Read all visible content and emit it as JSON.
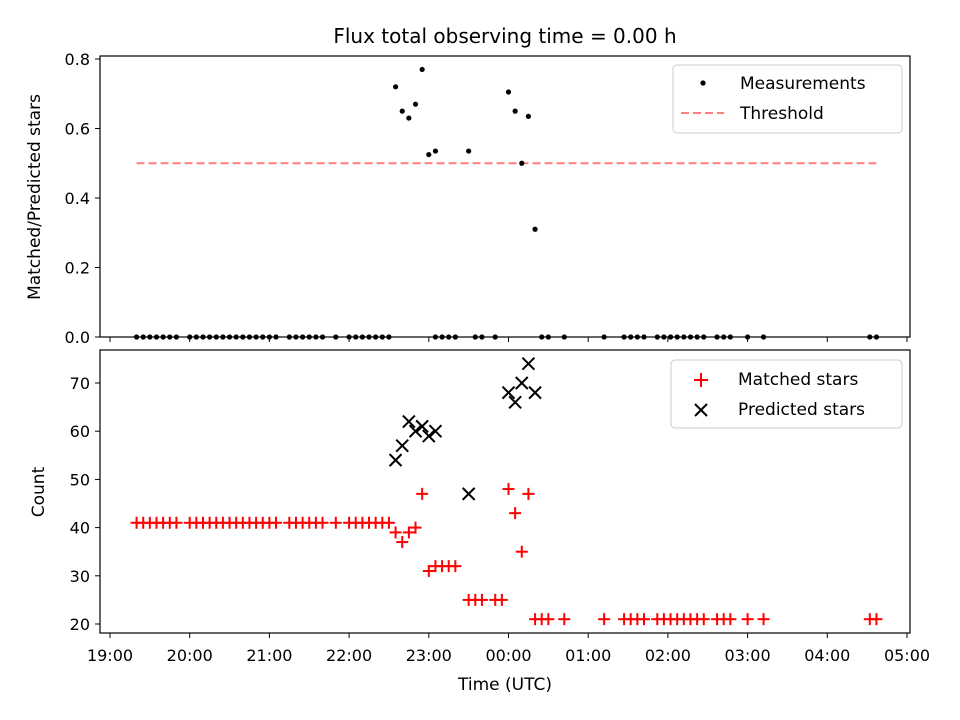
{
  "chart_data": [
    {
      "type": "scatter",
      "title": "Flux total observing time = 0.00 h",
      "ylabel": "Matched/Predicted stars",
      "xlim": [
        "19:00",
        "05:00"
      ],
      "ylim": [
        0,
        0.8
      ],
      "yticks": [
        "0.0",
        "0.2",
        "0.4",
        "0.6",
        "0.8"
      ],
      "legend_position": "upper-right",
      "threshold": {
        "name": "Threshold",
        "value": 0.5,
        "x_range": [
          "19:20",
          "04:37"
        ],
        "color": "#ff7f7f"
      },
      "series": [
        {
          "name": "Measurements",
          "marker": "dot",
          "color": "#000000",
          "points": [
            [
              "19:20",
              0
            ],
            [
              "19:25",
              0
            ],
            [
              "19:30",
              0
            ],
            [
              "19:35",
              0
            ],
            [
              "19:40",
              0
            ],
            [
              "19:45",
              0
            ],
            [
              "19:50",
              0
            ],
            [
              "20:00",
              0
            ],
            [
              "20:05",
              0
            ],
            [
              "20:10",
              0
            ],
            [
              "20:15",
              0
            ],
            [
              "20:20",
              0
            ],
            [
              "20:25",
              0
            ],
            [
              "20:30",
              0
            ],
            [
              "20:35",
              0
            ],
            [
              "20:40",
              0
            ],
            [
              "20:45",
              0
            ],
            [
              "20:50",
              0
            ],
            [
              "20:55",
              0
            ],
            [
              "21:00",
              0
            ],
            [
              "21:05",
              0
            ],
            [
              "21:15",
              0
            ],
            [
              "21:20",
              0
            ],
            [
              "21:25",
              0
            ],
            [
              "21:30",
              0
            ],
            [
              "21:35",
              0
            ],
            [
              "21:40",
              0
            ],
            [
              "21:50",
              0
            ],
            [
              "22:00",
              0
            ],
            [
              "22:05",
              0
            ],
            [
              "22:10",
              0
            ],
            [
              "22:15",
              0
            ],
            [
              "22:20",
              0
            ],
            [
              "22:25",
              0
            ],
            [
              "22:30",
              0
            ],
            [
              "22:35",
              0.72
            ],
            [
              "22:40",
              0.65
            ],
            [
              "22:45",
              0.63
            ],
            [
              "22:50",
              0.67
            ],
            [
              "22:55",
              0.77
            ],
            [
              "23:00",
              0.525
            ],
            [
              "23:05",
              0.535
            ],
            [
              "23:05",
              0
            ],
            [
              "23:10",
              0
            ],
            [
              "23:15",
              0
            ],
            [
              "23:20",
              0
            ],
            [
              "23:30",
              0.535
            ],
            [
              "23:35",
              0
            ],
            [
              "23:40",
              0
            ],
            [
              "23:50",
              0
            ],
            [
              "24:00",
              0.705
            ],
            [
              "24:05",
              0.65
            ],
            [
              "24:10",
              0.5
            ],
            [
              "24:15",
              0.635
            ],
            [
              "24:20",
              0.31
            ],
            [
              "24:25",
              0
            ],
            [
              "24:30",
              0
            ],
            [
              "24:42",
              0
            ],
            [
              "25:12",
              0
            ],
            [
              "25:27",
              0
            ],
            [
              "25:32",
              0
            ],
            [
              "25:37",
              0
            ],
            [
              "25:42",
              0
            ],
            [
              "25:52",
              0
            ],
            [
              "25:57",
              0
            ],
            [
              "26:02",
              0
            ],
            [
              "26:07",
              0
            ],
            [
              "26:12",
              0
            ],
            [
              "26:17",
              0
            ],
            [
              "26:22",
              0
            ],
            [
              "26:27",
              0
            ],
            [
              "26:37",
              0
            ],
            [
              "26:42",
              0
            ],
            [
              "26:47",
              0
            ],
            [
              "27:00",
              0
            ],
            [
              "27:12",
              0
            ],
            [
              "28:32",
              0
            ],
            [
              "28:37",
              0
            ]
          ]
        }
      ]
    },
    {
      "type": "scatter",
      "xlabel": "Time (UTC)",
      "ylabel": "Count",
      "xticks": [
        "19:00",
        "20:00",
        "21:00",
        "22:00",
        "23:00",
        "00:00",
        "01:00",
        "02:00",
        "03:00",
        "04:00",
        "05:00"
      ],
      "ylim": [
        19,
        77
      ],
      "yticks": [
        "20",
        "30",
        "40",
        "50",
        "60",
        "70"
      ],
      "legend_position": "upper-right",
      "series": [
        {
          "name": "Matched stars",
          "marker": "plus",
          "color": "#ff0000",
          "points": [
            [
              "19:20",
              41
            ],
            [
              "19:25",
              41
            ],
            [
              "19:30",
              41
            ],
            [
              "19:35",
              41
            ],
            [
              "19:40",
              41
            ],
            [
              "19:45",
              41
            ],
            [
              "19:50",
              41
            ],
            [
              "20:00",
              41
            ],
            [
              "20:05",
              41
            ],
            [
              "20:10",
              41
            ],
            [
              "20:15",
              41
            ],
            [
              "20:20",
              41
            ],
            [
              "20:25",
              41
            ],
            [
              "20:30",
              41
            ],
            [
              "20:35",
              41
            ],
            [
              "20:40",
              41
            ],
            [
              "20:45",
              41
            ],
            [
              "20:50",
              41
            ],
            [
              "20:55",
              41
            ],
            [
              "21:00",
              41
            ],
            [
              "21:05",
              41
            ],
            [
              "21:15",
              41
            ],
            [
              "21:20",
              41
            ],
            [
              "21:25",
              41
            ],
            [
              "21:30",
              41
            ],
            [
              "21:35",
              41
            ],
            [
              "21:40",
              41
            ],
            [
              "21:50",
              41
            ],
            [
              "22:00",
              41
            ],
            [
              "22:05",
              41
            ],
            [
              "22:10",
              41
            ],
            [
              "22:15",
              41
            ],
            [
              "22:20",
              41
            ],
            [
              "22:25",
              41
            ],
            [
              "22:30",
              41
            ],
            [
              "22:35",
              39
            ],
            [
              "22:40",
              37
            ],
            [
              "22:45",
              39
            ],
            [
              "22:50",
              40
            ],
            [
              "22:55",
              47
            ],
            [
              "23:00",
              31
            ],
            [
              "23:05",
              32
            ],
            [
              "23:10",
              32
            ],
            [
              "23:15",
              32
            ],
            [
              "23:20",
              32
            ],
            [
              "23:30",
              25
            ],
            [
              "23:35",
              25
            ],
            [
              "23:40",
              25
            ],
            [
              "23:50",
              25
            ],
            [
              "23:55",
              25
            ],
            [
              "24:00",
              48
            ],
            [
              "24:05",
              43
            ],
            [
              "24:10",
              35
            ],
            [
              "24:15",
              47
            ],
            [
              "24:20",
              21
            ],
            [
              "24:25",
              21
            ],
            [
              "24:30",
              21
            ],
            [
              "24:42",
              21
            ],
            [
              "25:12",
              21
            ],
            [
              "25:27",
              21
            ],
            [
              "25:32",
              21
            ],
            [
              "25:37",
              21
            ],
            [
              "25:42",
              21
            ],
            [
              "25:52",
              21
            ],
            [
              "25:57",
              21
            ],
            [
              "26:02",
              21
            ],
            [
              "26:07",
              21
            ],
            [
              "26:12",
              21
            ],
            [
              "26:17",
              21
            ],
            [
              "26:22",
              21
            ],
            [
              "26:27",
              21
            ],
            [
              "26:37",
              21
            ],
            [
              "26:42",
              21
            ],
            [
              "26:47",
              21
            ],
            [
              "27:00",
              21
            ],
            [
              "27:12",
              21
            ],
            [
              "28:32",
              21
            ],
            [
              "28:37",
              21
            ]
          ]
        },
        {
          "name": "Predicted stars",
          "marker": "x",
          "color": "#000000",
          "points": [
            [
              "22:35",
              54
            ],
            [
              "22:40",
              57
            ],
            [
              "22:45",
              62
            ],
            [
              "22:50",
              60
            ],
            [
              "22:55",
              61
            ],
            [
              "23:00",
              59
            ],
            [
              "23:05",
              60
            ],
            [
              "23:30",
              47
            ],
            [
              "24:00",
              68
            ],
            [
              "24:05",
              66
            ],
            [
              "24:10",
              70
            ],
            [
              "24:15",
              74
            ],
            [
              "24:20",
              68
            ]
          ]
        }
      ]
    }
  ]
}
